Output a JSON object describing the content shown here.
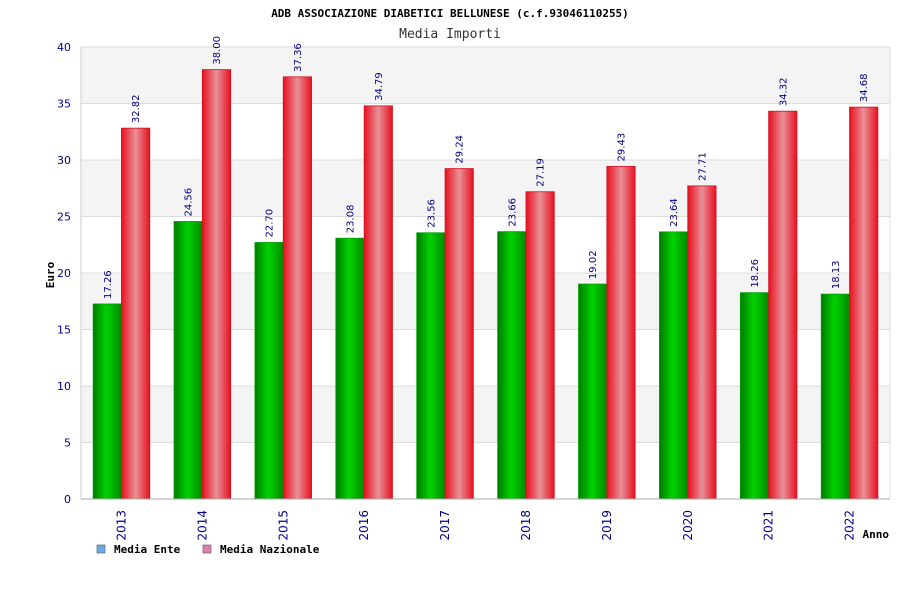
{
  "chart_data": {
    "type": "bar",
    "title": "ADB ASSOCIAZIONE DIABETICI BELLUNESE (c.f.93046110255)",
    "subtitle": "Media Importi",
    "xlabel": "Anno",
    "ylabel": "Euro",
    "ylim": [
      0,
      40
    ],
    "yticks": [
      0,
      5,
      10,
      15,
      20,
      25,
      30,
      35,
      40
    ],
    "grid": true,
    "legend": "bottom-left",
    "categories": [
      "2013",
      "2014",
      "2015",
      "2016",
      "2017",
      "2018",
      "2019",
      "2020",
      "2021",
      "2022"
    ],
    "series": [
      {
        "name": "Media Ente",
        "legend_color": "#6fa8e8",
        "bar_color": "#00b000",
        "values": [
          17.26,
          24.56,
          22.7,
          23.08,
          23.56,
          23.66,
          19.02,
          23.64,
          18.26,
          18.13
        ],
        "labels": [
          "17.26",
          "24.56",
          "22.70",
          "23.08",
          "23.56",
          "23.66",
          "19.02",
          "23.64",
          "18.26",
          "18.13"
        ]
      },
      {
        "name": "Media Nazionale",
        "legend_color": "#e27fb0",
        "bar_color": "#ee1c2a",
        "values": [
          32.82,
          38.0,
          37.36,
          34.79,
          29.24,
          27.19,
          29.43,
          27.71,
          34.32,
          34.68
        ],
        "labels": [
          "32.82",
          "38.00",
          "37.36",
          "34.79",
          "29.24",
          "27.19",
          "29.43",
          "27.71",
          "34.32",
          "34.68"
        ]
      }
    ]
  }
}
